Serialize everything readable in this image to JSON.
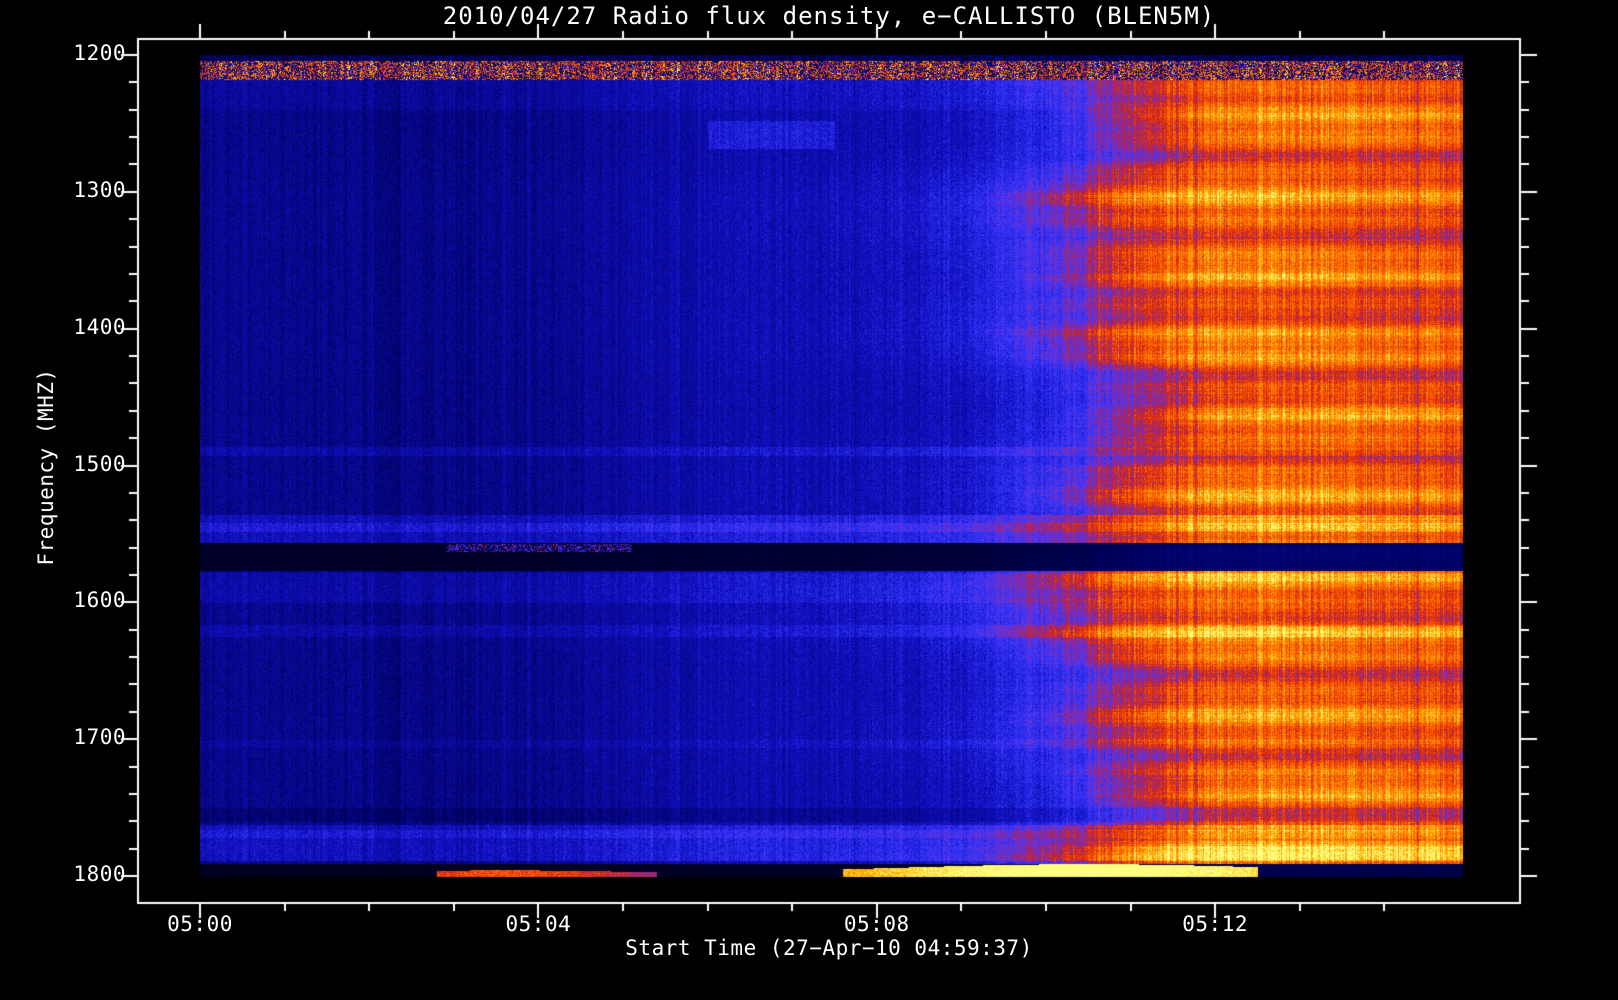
{
  "page": {
    "background_color": "#000000",
    "text_color": "#ffffff"
  },
  "chart_data": {
    "type": "heatmap",
    "title": "2010/04/27  Radio flux density, e−CALLISTO (BLEN5M)",
    "xlabel": "Start Time (27−Apr−10 04:59:37)",
    "ylabel": "Frequency (MHZ)",
    "legend": "none",
    "grid": "off",
    "x_axis": {
      "ticks": [
        {
          "label": "05:00",
          "minutes": 0
        },
        {
          "label": "05:04",
          "minutes": 4
        },
        {
          "label": "05:08",
          "minutes": 8
        },
        {
          "label": "05:12",
          "minutes": 12
        }
      ],
      "minor_tick_step_minutes": 1,
      "range_minutes": [
        0,
        14.93
      ]
    },
    "y_axis": {
      "ticks": [
        {
          "label": "1200",
          "mhz": 1200
        },
        {
          "label": "1300",
          "mhz": 1300
        },
        {
          "label": "1400",
          "mhz": 1400
        },
        {
          "label": "1500",
          "mhz": 1500
        },
        {
          "label": "1600",
          "mhz": 1600
        },
        {
          "label": "1700",
          "mhz": 1700
        },
        {
          "label": "1800",
          "mhz": 1800
        }
      ],
      "minor_tick_step_mhz": 20,
      "range_mhz": [
        1200,
        1800
      ],
      "inverted": true
    },
    "colormap": [
      [
        0.0,
        "#000006"
      ],
      [
        0.22,
        "#00005a"
      ],
      [
        0.42,
        "#1010c0"
      ],
      [
        0.56,
        "#3838ff"
      ],
      [
        0.64,
        "#7a30c8"
      ],
      [
        0.7,
        "#b42046"
      ],
      [
        0.76,
        "#e63200"
      ],
      [
        0.84,
        "#ff6400"
      ],
      [
        0.93,
        "#ffb400"
      ],
      [
        1.0,
        "#ffff80"
      ]
    ],
    "intensity_profile_minutes_value": [
      [
        0,
        0.3
      ],
      [
        2,
        0.315
      ],
      [
        4,
        0.335
      ],
      [
        6,
        0.36
      ],
      [
        7.5,
        0.395
      ],
      [
        8.6,
        0.44
      ],
      [
        9.4,
        0.5
      ],
      [
        10.2,
        0.6
      ],
      [
        10.9,
        0.7
      ],
      [
        11.5,
        0.78
      ],
      [
        12.2,
        0.81
      ],
      [
        13.2,
        0.83
      ],
      [
        14.0,
        0.81
      ],
      [
        14.93,
        0.8
      ]
    ],
    "noise": {
      "pixel": 0.12,
      "column": 0.055,
      "column_block": 0.05,
      "red_column_extra": 0.12,
      "row_stripe_red": 0.1,
      "transition_shift_minutes": 0.6
    },
    "rfi_band": {
      "f_min": 1200,
      "f_max": 1218
    },
    "features": [
      {
        "name": "band-1228-faint",
        "f0": 1216,
        "f1": 1240,
        "add": 0.03
      },
      {
        "name": "patch-1258",
        "f0": 1248,
        "f1": 1268,
        "t0": 6.0,
        "t1": 7.5,
        "add": 0.09
      },
      {
        "name": "line-1490",
        "f0": 1486,
        "f1": 1493,
        "add": 0.06
      },
      {
        "name": "bright-band-1546",
        "f0": 1536,
        "f1": 1556,
        "add": 0.09
      },
      {
        "name": "line-1545",
        "f0": 1542,
        "f1": 1548,
        "add": 0.06
      },
      {
        "name": "dark-band-1566",
        "f0": 1556,
        "f1": 1577,
        "mul": 0.3
      },
      {
        "name": "red-dashes-1560",
        "f0": 1557,
        "f1": 1563,
        "t0": 2.9,
        "t1": 5.1,
        "set": 0.3,
        "jitter": 0.85
      },
      {
        "name": "bright-band-1588",
        "f0": 1578,
        "f1": 1600,
        "add": 0.05
      },
      {
        "name": "line-1620",
        "f0": 1616,
        "f1": 1625,
        "add": 0.05
      },
      {
        "name": "line-1703",
        "f0": 1700,
        "f1": 1706,
        "add": 0.03
      },
      {
        "name": "dark-line-1755",
        "f0": 1750,
        "f1": 1760,
        "add": -0.05
      },
      {
        "name": "bright-band-1775",
        "f0": 1762,
        "f1": 1789,
        "add": 0.1
      },
      {
        "name": "line-1769",
        "f0": 1766,
        "f1": 1772,
        "add": 0.05
      },
      {
        "name": "dark-band-1795",
        "f0": 1791,
        "f1": 1800,
        "mul": 0.22
      }
    ],
    "bursts": [
      {
        "name": "red-burst-1800",
        "t0": 2.8,
        "t1": 5.4,
        "t_peak": 3.6,
        "base_thickness_mhz": 2.5,
        "peak_thickness_mhz": 2.0,
        "sigma_thickness": 1.2,
        "base_value": 0.62,
        "peak_value": 0.18,
        "sigma_value": 1.2,
        "jitter": 0.15
      },
      {
        "name": "yellow-burst-1800",
        "t0": 7.6,
        "t1": 12.5,
        "t_peak": 10.5,
        "base_thickness_mhz": 2.5,
        "peak_thickness_mhz": 6.5,
        "sigma_thickness": 2.2,
        "base_value": 0.72,
        "peak_value": 0.33,
        "sigma_value": 2.8,
        "jitter": 0.12
      }
    ]
  }
}
